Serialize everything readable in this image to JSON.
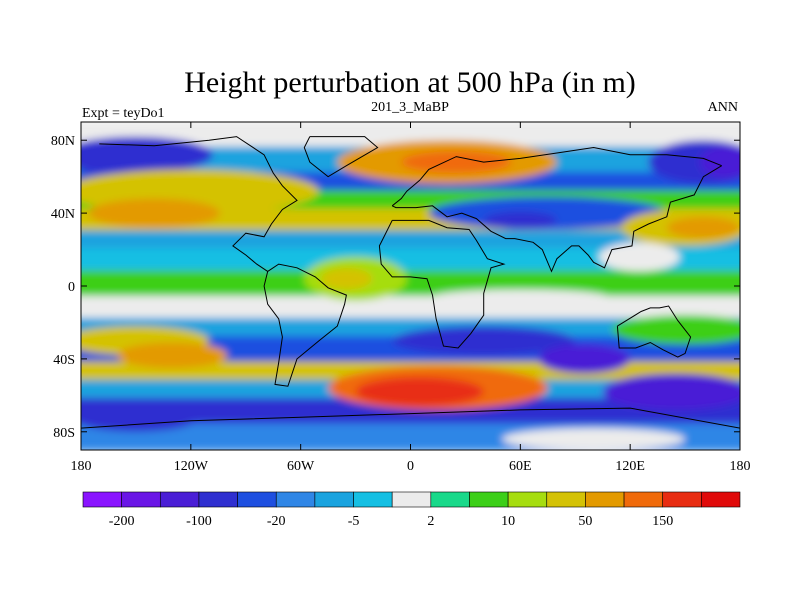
{
  "chart_data": {
    "type": "heatmap",
    "title": "Height perturbation at 500 hPa (in m)",
    "left_string": "Expt = teyDo1",
    "center_string": "201_3_MaBP",
    "right_string": "ANN",
    "units": "m",
    "x_range": [
      -180,
      180
    ],
    "y_range": [
      -90,
      90
    ],
    "x_ticks": [
      {
        "value": -180,
        "label": "180"
      },
      {
        "value": -120,
        "label": "120W"
      },
      {
        "value": -60,
        "label": "60W"
      },
      {
        "value": 0,
        "label": "0"
      },
      {
        "value": 60,
        "label": "60E"
      },
      {
        "value": 120,
        "label": "120E"
      },
      {
        "value": 180,
        "label": "180"
      }
    ],
    "y_ticks": [
      {
        "value": 80,
        "label": "80N"
      },
      {
        "value": 40,
        "label": "40N"
      },
      {
        "value": 0,
        "label": "0"
      },
      {
        "value": -40,
        "label": "40S"
      },
      {
        "value": -80,
        "label": "80S"
      }
    ],
    "colorbar": {
      "colors": [
        "#8a14ff",
        "#6a16e6",
        "#4a1ed6",
        "#2f2fd0",
        "#1e4fe0",
        "#2f86e6",
        "#1aa3df",
        "#15bfe3",
        "#ececec",
        "#19d98a",
        "#3ccf18",
        "#a6dd0f",
        "#d4c206",
        "#e39a00",
        "#f06a0a",
        "#e82d12",
        "#e00a0a"
      ],
      "labels": [
        {
          "boundary": 1,
          "text": "-200"
        },
        {
          "boundary": 3,
          "text": "-100"
        },
        {
          "boundary": 5,
          "text": "-20"
        },
        {
          "boundary": 7,
          "text": "-5"
        },
        {
          "boundary": 9,
          "text": "2"
        },
        {
          "boundary": 11,
          "text": "10"
        },
        {
          "boundary": 13,
          "text": "50"
        },
        {
          "boundary": 15,
          "text": "150"
        }
      ]
    },
    "bands": [
      {
        "lat_top": 90,
        "lat_bot": 76,
        "level": 8
      },
      {
        "lat_top": 76,
        "lat_bot": 62,
        "level": 6
      },
      {
        "lat_top": 62,
        "lat_bot": 52,
        "level": 4
      },
      {
        "lat_top": 52,
        "lat_bot": 42,
        "level": 10
      },
      {
        "lat_top": 42,
        "lat_bot": 30,
        "level": 12
      },
      {
        "lat_top": 30,
        "lat_bot": 20,
        "level": 6
      },
      {
        "lat_top": 20,
        "lat_bot": 8,
        "level": 7
      },
      {
        "lat_top": 8,
        "lat_bot": -6,
        "level": 10
      },
      {
        "lat_top": -6,
        "lat_bot": -18,
        "level": 8
      },
      {
        "lat_top": -18,
        "lat_bot": -28,
        "level": 6
      },
      {
        "lat_top": -28,
        "lat_bot": -42,
        "level": 4
      },
      {
        "lat_top": -42,
        "lat_bot": -52,
        "level": 12
      },
      {
        "lat_top": -52,
        "lat_bot": -62,
        "level": 6
      },
      {
        "lat_top": -62,
        "lat_bot": -76,
        "level": 3
      },
      {
        "lat_top": -76,
        "lat_bot": -90,
        "level": 5
      }
    ],
    "features": [
      {
        "lon": -150,
        "lat": 72,
        "rlon": 42,
        "rlat": 10,
        "level": 3
      },
      {
        "lon": -170,
        "lat": 70,
        "rlon": 18,
        "rlat": 8,
        "level": 3
      },
      {
        "lon": 160,
        "lat": 68,
        "rlon": 30,
        "rlat": 12,
        "level": 3
      },
      {
        "lon": 172,
        "lat": 68,
        "rlon": 14,
        "rlat": 9,
        "level": 2
      },
      {
        "lon": -120,
        "lat": 52,
        "rlon": 70,
        "rlat": 12,
        "level": 12
      },
      {
        "lon": -140,
        "lat": 40,
        "rlon": 36,
        "rlat": 8,
        "level": 13
      },
      {
        "lon": 20,
        "lat": 68,
        "rlon": 60,
        "rlat": 12,
        "level": 13
      },
      {
        "lon": 25,
        "lat": 68,
        "rlon": 30,
        "rlat": 6,
        "level": 14
      },
      {
        "lon": 75,
        "lat": 40,
        "rlon": 65,
        "rlat": 9,
        "level": 4
      },
      {
        "lon": 60,
        "lat": 36,
        "rlon": 20,
        "rlat": 5,
        "level": 3
      },
      {
        "lon": 150,
        "lat": 32,
        "rlon": 35,
        "rlat": 10,
        "level": 12
      },
      {
        "lon": 160,
        "lat": 32,
        "rlon": 20,
        "rlat": 6,
        "level": 13
      },
      {
        "lon": 125,
        "lat": 16,
        "rlon": 22,
        "rlat": 8,
        "level": 8
      },
      {
        "lon": -30,
        "lat": 4,
        "rlon": 28,
        "rlat": 12,
        "level": 11
      },
      {
        "lon": -35,
        "lat": 4,
        "rlon": 14,
        "rlat": 6,
        "level": 12
      },
      {
        "lon": 60,
        "lat": -6,
        "rlon": 48,
        "rlat": 4,
        "level": 8
      },
      {
        "lon": 150,
        "lat": -24,
        "rlon": 40,
        "rlat": 8,
        "level": 10
      },
      {
        "lon": -150,
        "lat": -30,
        "rlon": 40,
        "rlat": 8,
        "level": 12
      },
      {
        "lon": -130,
        "lat": -38,
        "rlon": 30,
        "rlat": 7,
        "level": 13
      },
      {
        "lon": 15,
        "lat": -56,
        "rlon": 60,
        "rlat": 12,
        "level": 14
      },
      {
        "lon": 5,
        "lat": -58,
        "rlon": 35,
        "rlat": 8,
        "level": 15
      },
      {
        "lon": 40,
        "lat": -30,
        "rlon": 50,
        "rlat": 8,
        "level": 3
      },
      {
        "lon": 95,
        "lat": -40,
        "rlon": 25,
        "rlat": 8,
        "level": 2
      },
      {
        "lon": 145,
        "lat": -58,
        "rlon": 40,
        "rlat": 10,
        "level": 2
      },
      {
        "lon": -150,
        "lat": -72,
        "rlon": 35,
        "rlat": 8,
        "level": 3
      },
      {
        "lon": 100,
        "lat": -84,
        "rlon": 50,
        "rlat": 6,
        "level": 8
      }
    ],
    "coastlines": [
      [
        [
          -170,
          78
        ],
        [
          -140,
          77
        ],
        [
          -110,
          80
        ],
        [
          -95,
          82
        ],
        [
          -80,
          72
        ],
        [
          -75,
          62
        ],
        [
          -70,
          55
        ],
        [
          -62,
          47
        ],
        [
          -70,
          42
        ],
        [
          -76,
          34
        ],
        [
          -80,
          27
        ],
        [
          -90,
          29
        ],
        [
          -97,
          22
        ],
        [
          -90,
          17
        ],
        [
          -84,
          12
        ],
        [
          -78,
          8
        ]
      ],
      [
        [
          -78,
          8
        ],
        [
          -80,
          0
        ],
        [
          -78,
          -10
        ],
        [
          -72,
          -18
        ],
        [
          -70,
          -28
        ],
        [
          -72,
          -42
        ],
        [
          -74,
          -54
        ],
        [
          -67,
          -55
        ],
        [
          -62,
          -40
        ],
        [
          -50,
          -30
        ],
        [
          -40,
          -22
        ],
        [
          -36,
          -10
        ],
        [
          -35,
          -5
        ],
        [
          -45,
          -1
        ],
        [
          -52,
          5
        ],
        [
          -62,
          10
        ],
        [
          -72,
          12
        ],
        [
          -78,
          8
        ]
      ],
      [
        [
          -10,
          36
        ],
        [
          -17,
          22
        ],
        [
          -16,
          12
        ],
        [
          -10,
          5
        ],
        [
          0,
          5
        ],
        [
          9,
          4
        ],
        [
          12,
          -5
        ],
        [
          14,
          -18
        ],
        [
          18,
          -33
        ],
        [
          26,
          -34
        ],
        [
          33,
          -26
        ],
        [
          40,
          -16
        ],
        [
          40,
          -4
        ],
        [
          44,
          10
        ],
        [
          51,
          12
        ],
        [
          42,
          15
        ],
        [
          36,
          25
        ],
        [
          32,
          31
        ],
        [
          20,
          32
        ],
        [
          10,
          36
        ],
        [
          -5,
          36
        ],
        [
          -10,
          36
        ]
      ],
      [
        [
          -10,
          44
        ],
        [
          -5,
          48
        ],
        [
          -2,
          52
        ],
        [
          5,
          58
        ],
        [
          10,
          64
        ],
        [
          25,
          71
        ],
        [
          40,
          68
        ],
        [
          60,
          70
        ],
        [
          80,
          73
        ],
        [
          100,
          76
        ],
        [
          120,
          72
        ],
        [
          140,
          72
        ],
        [
          160,
          70
        ],
        [
          170,
          66
        ]
      ],
      [
        [
          170,
          66
        ],
        [
          160,
          60
        ],
        [
          155,
          50
        ],
        [
          142,
          46
        ],
        [
          140,
          38
        ],
        [
          130,
          34
        ],
        [
          122,
          30
        ],
        [
          121,
          22
        ],
        [
          110,
          20
        ],
        [
          106,
          10
        ],
        [
          100,
          13
        ],
        [
          97,
          17
        ],
        [
          92,
          22
        ],
        [
          88,
          22
        ],
        [
          80,
          15
        ],
        [
          77,
          8
        ],
        [
          72,
          20
        ],
        [
          67,
          24
        ],
        [
          57,
          26
        ],
        [
          52,
          26
        ],
        [
          44,
          30
        ],
        [
          36,
          37
        ],
        [
          28,
          40
        ],
        [
          20,
          38
        ],
        [
          12,
          44
        ],
        [
          3,
          43
        ],
        [
          -8,
          43
        ],
        [
          -10,
          44
        ]
      ],
      [
        [
          -55,
          82
        ],
        [
          -25,
          82
        ],
        [
          -18,
          76
        ],
        [
          -35,
          66
        ],
        [
          -45,
          60
        ],
        [
          -55,
          68
        ],
        [
          -58,
          76
        ],
        [
          -55,
          82
        ]
      ],
      [
        [
          113,
          -22
        ],
        [
          114,
          -34
        ],
        [
          123,
          -34
        ],
        [
          131,
          -31
        ],
        [
          138,
          -35
        ],
        [
          146,
          -39
        ],
        [
          150,
          -37
        ],
        [
          153,
          -28
        ],
        [
          146,
          -19
        ],
        [
          141,
          -11
        ],
        [
          136,
          -12
        ],
        [
          131,
          -12
        ],
        [
          126,
          -14
        ],
        [
          113,
          -22
        ]
      ],
      [
        [
          -180,
          -78
        ],
        [
          -120,
          -74
        ],
        [
          -60,
          -72
        ],
        [
          0,
          -70
        ],
        [
          60,
          -68
        ],
        [
          120,
          -67
        ],
        [
          180,
          -78
        ]
      ]
    ]
  }
}
